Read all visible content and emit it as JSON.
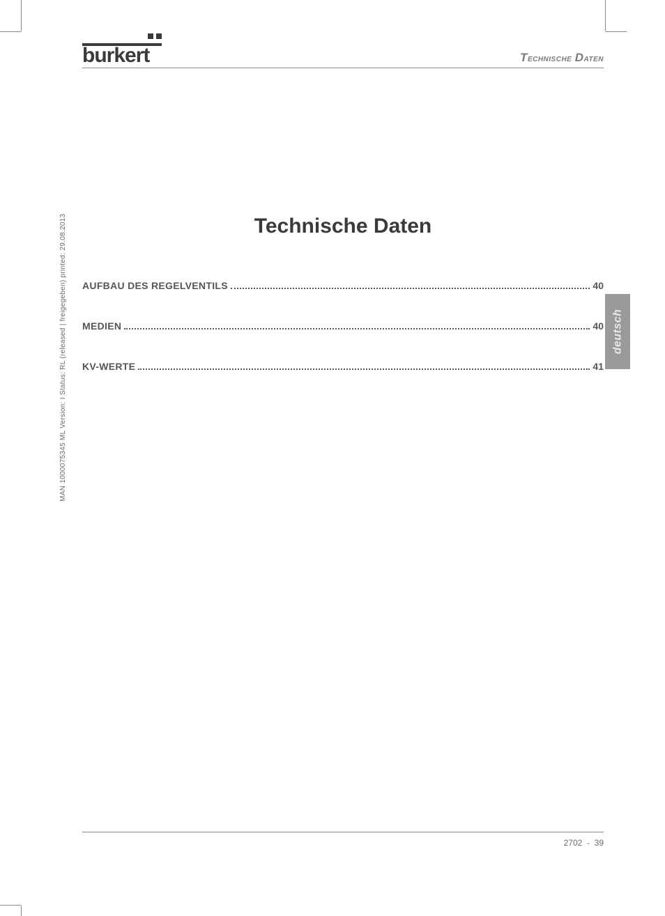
{
  "logo": {
    "text": "burkert"
  },
  "header": {
    "section_title": "Technische Daten"
  },
  "title": "Technische Daten",
  "toc": [
    {
      "label": "AUFBAU DES REGELVENTILS",
      "page": "40"
    },
    {
      "label": "MEDIEN",
      "page": "40"
    },
    {
      "label": "KV-WERTE",
      "page": "41"
    }
  ],
  "side_tab": "deutsch",
  "vertical_meta": "MAN 1000075345 ML Version: I Status: RL (released | freigegeben) printed: 29.08.2013",
  "footer": {
    "doc_no": "2702",
    "page_no": "39"
  },
  "colors": {
    "text_dark": "#3a3a3a",
    "text_mid": "#555555",
    "text_light": "#7a7a7a",
    "rule": "#888888",
    "tab_bg": "#9a9a9a",
    "tab_text": "#e8e8e8",
    "background": "#ffffff"
  },
  "typography": {
    "title_fontsize": 30,
    "toc_fontsize": 14,
    "header_fontsize": 14,
    "meta_fontsize": 10,
    "footer_fontsize": 12
  }
}
